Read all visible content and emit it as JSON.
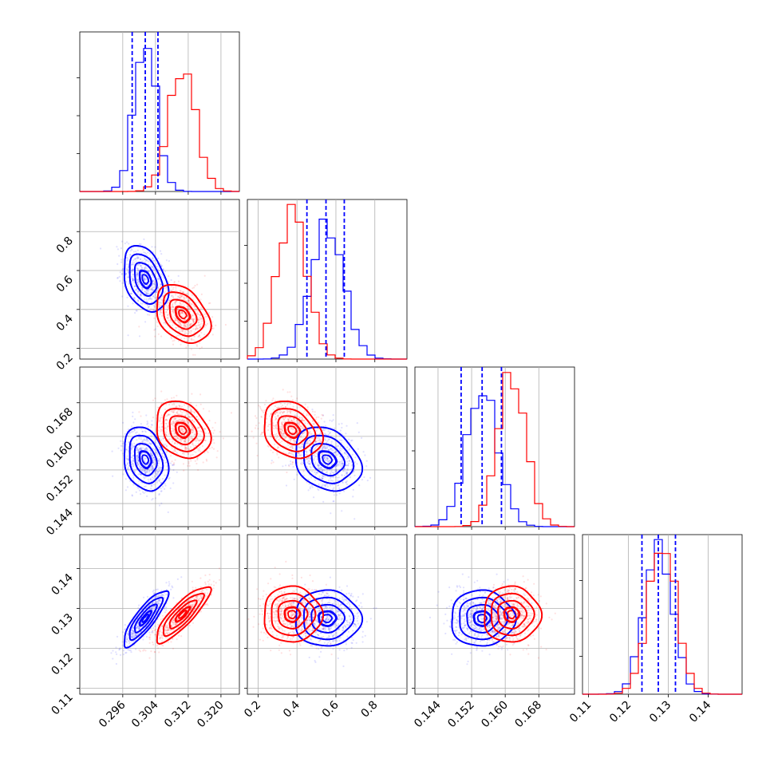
{
  "chart_data": {
    "type": "corner",
    "parameters": [
      {
        "ticks": [
          "0.296",
          "0.304",
          "0.312",
          "0.320"
        ],
        "tick_values": [
          0.296,
          0.304,
          0.312,
          0.32
        ],
        "range": [
          0.2855,
          0.3245
        ]
      },
      {
        "ticks": [
          "0.2",
          "0.4",
          "0.6",
          "0.8"
        ],
        "tick_values": [
          0.2,
          0.4,
          0.6,
          0.8
        ],
        "range": [
          0.145,
          0.965
        ]
      },
      {
        "ticks": [
          "0.144",
          "0.152",
          "0.160",
          "0.168"
        ],
        "tick_values": [
          0.144,
          0.152,
          0.16,
          0.168
        ],
        "range": [
          0.1385,
          0.1765
        ]
      },
      {
        "ticks": [
          "0.11",
          "0.12",
          "0.13",
          "0.14"
        ],
        "tick_values": [
          0.11,
          0.12,
          0.13,
          0.14
        ],
        "range": [
          0.1085,
          0.1485
        ]
      }
    ],
    "grid": true,
    "series": [
      {
        "color": "#0000ff",
        "mean": [
          0.3015,
          0.555,
          0.1545,
          0.1275
        ],
        "sd": [
          0.0027,
          0.085,
          0.0038,
          0.0035
        ],
        "correlations": {
          "0-1": -0.35,
          "0-2": -0.25,
          "0-3": 0.85,
          "1-2": -0.25,
          "1-3": 0.0,
          "2-3": 0.0
        },
        "quantiles": [
          [
            0.2983,
            0.3015,
            0.3046
          ],
          [
            0.451,
            0.549,
            0.643
          ],
          [
            0.1495,
            0.1545,
            0.1591
          ],
          [
            0.1234,
            0.1275,
            0.1318
          ]
        ]
      },
      {
        "color": "#ff0000",
        "mean": [
          0.3106,
          0.375,
          0.1615,
          0.1285
        ],
        "sd": [
          0.0033,
          0.075,
          0.0034,
          0.0035
        ],
        "correlations": {
          "0-1": -0.35,
          "0-2": -0.25,
          "0-3": 0.85,
          "1-2": -0.25,
          "1-3": 0.0,
          "2-3": 0.0
        }
      }
    ]
  }
}
